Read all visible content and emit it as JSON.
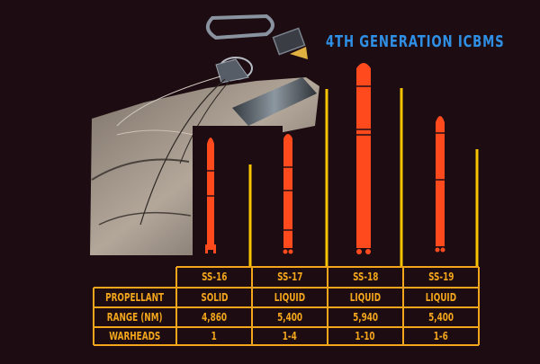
{
  "title": "4TH GENERATION ICBMS",
  "missiles": [
    "SS-16",
    "SS-17",
    "SS-18",
    "SS-19"
  ],
  "rows": [
    {
      "label": "PROPELLANT",
      "values": [
        "SOLID",
        "LIQUID",
        "LIQUID",
        "LIQUID"
      ]
    },
    {
      "label": "RANGE (NM)",
      "values": [
        "4,860",
        "5,400",
        "5,940",
        "5,400"
      ]
    },
    {
      "label": "WARHEADS",
      "values": [
        "1",
        "1-4",
        "1-10",
        "1-6"
      ]
    }
  ],
  "colors": {
    "background": "#1d0d12",
    "title": "#2f8fe4",
    "table": "#f3a51c",
    "missile": "#ff4a1e",
    "bar": "#ffcc00"
  }
}
